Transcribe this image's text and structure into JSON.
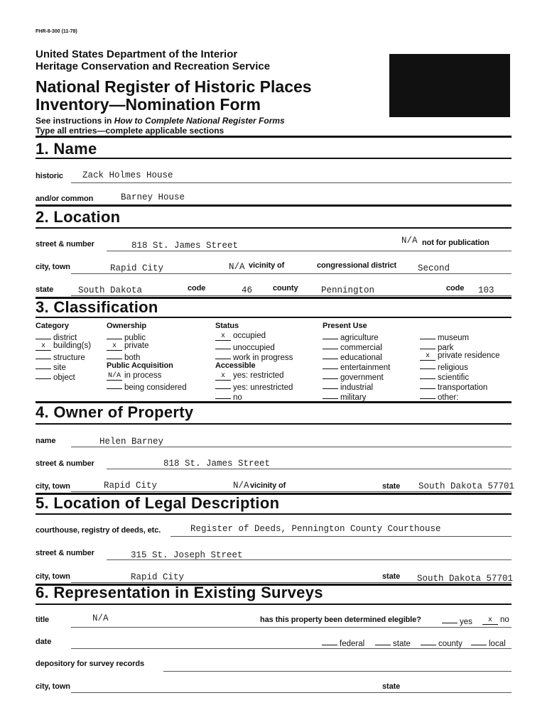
{
  "form_number": "FHR-8-300 (11-78)",
  "agency": [
    "United States Department of the Interior",
    "Heritage Conservation and Recreation Service"
  ],
  "title": [
    "National Register of Historic Places",
    "Inventory—Nomination Form"
  ],
  "instructions": {
    "prefix": "See instructions in ",
    "italic": "How to Complete National Register Forms"
  },
  "type_all": "Type all entries—complete applicable sections",
  "s1": {
    "heading": "1. Name",
    "historic_label": "historic",
    "historic_value": "Zack Holmes House",
    "common_label": "and/or common",
    "common_value": "Barney House"
  },
  "s2": {
    "heading": "2. Location",
    "street_label": "street & number",
    "street_value": "818 St. James Street",
    "nfp_value": "N/A",
    "nfp_label": "not for publication",
    "city_label": "city, town",
    "city_value": "Rapid City",
    "vicinity_value": "N/A",
    "vicinity_label": "vicinity of",
    "district_label": "congressional district",
    "district_value": "Second",
    "state_label": "state",
    "state_value": "South Dakota",
    "code_label": "code",
    "code_value": "46",
    "county_label": "county",
    "county_value": "Pennington",
    "code2_label": "code",
    "code2_value": "103"
  },
  "s3": {
    "heading": "3. Classification",
    "category": {
      "label": "Category",
      "items": [
        {
          "mark": "",
          "label": "district"
        },
        {
          "mark": "x",
          "label": "building(s)"
        },
        {
          "mark": "",
          "label": "structure"
        },
        {
          "mark": "",
          "label": "site"
        },
        {
          "mark": "",
          "label": "object"
        }
      ]
    },
    "ownership": {
      "label": "Ownership",
      "items": [
        {
          "mark": "",
          "label": "public"
        },
        {
          "mark": "x",
          "label": "private"
        },
        {
          "mark": "",
          "label": "both"
        }
      ]
    },
    "public_acquisition": {
      "label": "Public Acquisition",
      "items": [
        {
          "mark": "N/A",
          "label": "in process"
        },
        {
          "mark": "",
          "label": "being considered"
        }
      ]
    },
    "status": {
      "label": "Status",
      "items": [
        {
          "mark": "x",
          "label": "occupied"
        },
        {
          "mark": "",
          "label": "unoccupied"
        },
        {
          "mark": "",
          "label": "work in progress"
        }
      ]
    },
    "accessible": {
      "label": "Accessible",
      "items": [
        {
          "mark": "x",
          "label": "yes: restricted"
        },
        {
          "mark": "",
          "label": "yes: unrestricted"
        },
        {
          "mark": "",
          "label": "no"
        }
      ]
    },
    "present_use": {
      "label": "Present Use",
      "items": [
        {
          "mark": "",
          "label": "agriculture"
        },
        {
          "mark": "",
          "label": "commercial"
        },
        {
          "mark": "",
          "label": "educational"
        },
        {
          "mark": "",
          "label": "entertainment"
        },
        {
          "mark": "",
          "label": "government"
        },
        {
          "mark": "",
          "label": "industrial"
        },
        {
          "mark": "",
          "label": "military"
        },
        {
          "mark": "",
          "label": "museum"
        },
        {
          "mark": "",
          "label": "park"
        },
        {
          "mark": "x",
          "label": "private residence"
        },
        {
          "mark": "",
          "label": "religious"
        },
        {
          "mark": "",
          "label": "scientific"
        },
        {
          "mark": "",
          "label": "transportation"
        },
        {
          "mark": "",
          "label": "other:"
        }
      ]
    }
  },
  "s4": {
    "heading": "4. Owner of Property",
    "name_label": "name",
    "name_value": "Helen Barney",
    "street_label": "street & number",
    "street_value": "818 St. James Street",
    "city_label": "city, town",
    "city_value": "Rapid City",
    "vicinity_value": "N/A",
    "vicinity_label": "vicinity of",
    "state_label": "state",
    "state_value": "South Dakota 57701"
  },
  "s5": {
    "heading": "5. Location of Legal Description",
    "courthouse_label": "courthouse, registry of deeds, etc.",
    "courthouse_value": "Register of Deeds, Pennington County Courthouse",
    "street_label": "street & number",
    "street_value": "315 St. Joseph Street",
    "city_label": "city, town",
    "city_value": "Rapid City",
    "state_label": "state",
    "state_value": "South Dakota 57701"
  },
  "s6": {
    "heading": "6. Representation in Existing Surveys",
    "title_label": "title",
    "title_value": "N/A",
    "eligible_label": "has this property been determined elegible?",
    "eligible": [
      {
        "mark": "",
        "label": "yes"
      },
      {
        "mark": "x",
        "label": "no"
      }
    ],
    "date_label": "date",
    "levels": [
      {
        "mark": "",
        "label": "federal"
      },
      {
        "mark": "",
        "label": "state"
      },
      {
        "mark": "",
        "label": "county"
      },
      {
        "mark": "",
        "label": "local"
      }
    ],
    "depository_label": "depository for survey records",
    "city_label": "city, town",
    "state_label": "state"
  }
}
